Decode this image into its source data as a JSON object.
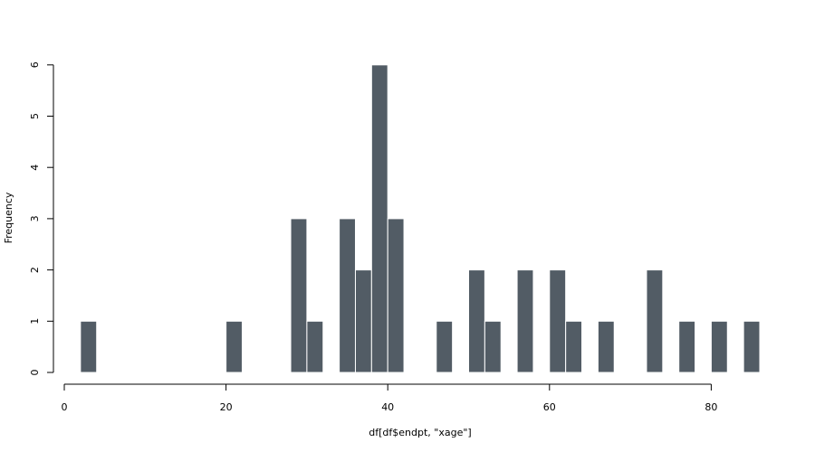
{
  "chart_data": {
    "type": "bar",
    "subtype": "histogram",
    "title": "",
    "xlabel": "df[df$endpt, \"xage\"]",
    "ylabel": "Frequency",
    "xlim": [
      0,
      86
    ],
    "ylim": [
      0,
      6
    ],
    "x_ticks": [
      "0",
      "20",
      "40",
      "60",
      "80"
    ],
    "y_ticks": [
      "0",
      "1",
      "2",
      "3",
      "4",
      "5",
      "6"
    ],
    "bin_width": 2,
    "bins": [
      {
        "start": 2,
        "end": 4,
        "count": 1
      },
      {
        "start": 20,
        "end": 22,
        "count": 1
      },
      {
        "start": 28,
        "end": 30,
        "count": 3
      },
      {
        "start": 30,
        "end": 32,
        "count": 1
      },
      {
        "start": 34,
        "end": 36,
        "count": 3
      },
      {
        "start": 36,
        "end": 38,
        "count": 2
      },
      {
        "start": 38,
        "end": 40,
        "count": 6
      },
      {
        "start": 40,
        "end": 42,
        "count": 3
      },
      {
        "start": 46,
        "end": 48,
        "count": 1
      },
      {
        "start": 50,
        "end": 52,
        "count": 2
      },
      {
        "start": 52,
        "end": 54,
        "count": 1
      },
      {
        "start": 56,
        "end": 58,
        "count": 2
      },
      {
        "start": 60,
        "end": 62,
        "count": 2
      },
      {
        "start": 62,
        "end": 64,
        "count": 1
      },
      {
        "start": 66,
        "end": 68,
        "count": 1
      },
      {
        "start": 72,
        "end": 74,
        "count": 2
      },
      {
        "start": 76,
        "end": 78,
        "count": 1
      },
      {
        "start": 80,
        "end": 82,
        "count": 1
      },
      {
        "start": 84,
        "end": 86,
        "count": 1
      }
    ],
    "bar_color": "#525c65",
    "grid": false,
    "legend": "none"
  }
}
